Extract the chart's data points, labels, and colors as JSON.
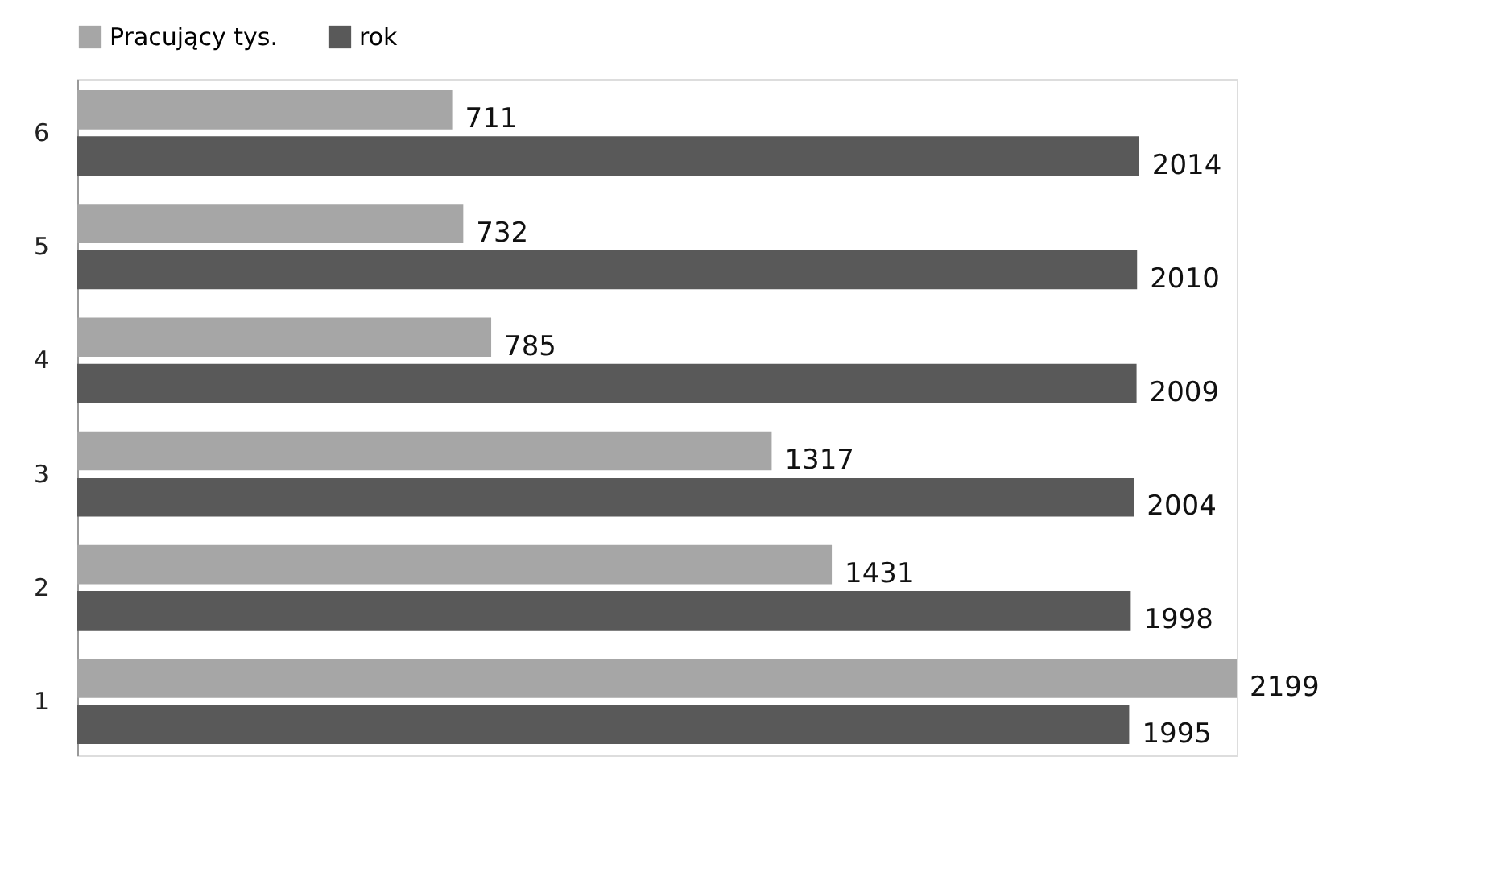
{
  "chart_data": {
    "type": "bar",
    "orientation": "horizontal",
    "categories": [
      "6",
      "5",
      "4",
      "3",
      "2",
      "1"
    ],
    "series": [
      {
        "name": "Pracujący tys.",
        "color": "#a6a6a6",
        "values": [
          711,
          732,
          785,
          1317,
          1431,
          2199
        ]
      },
      {
        "name": "rok",
        "color": "#595959",
        "values": [
          2014,
          2010,
          2009,
          2004,
          1998,
          1995
        ]
      }
    ],
    "data_labels": true,
    "legend": "top",
    "tick_labels": "y",
    "grid": false
  }
}
